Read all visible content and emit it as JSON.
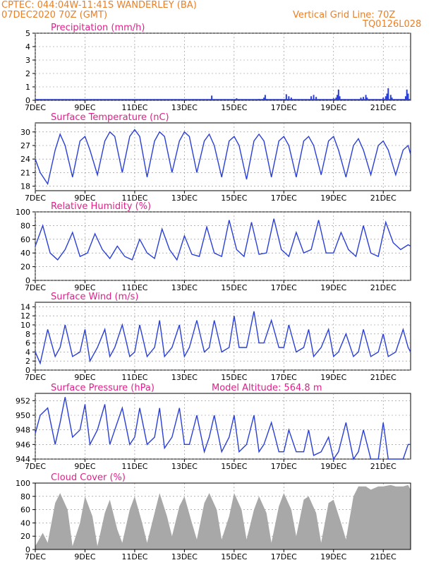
{
  "header": {
    "line1_left": "CPTEC:   044:04W-11:41S   WANDERLEY (BA)",
    "line2_left": "07DEC2020 70Z (GMT)",
    "line2_right": "Vertical Grid Line: 70Z",
    "line3_right": "TQ0126L028"
  },
  "colors": {
    "line": "#2a3fd6",
    "bar": "#2a3fd6",
    "cloud": "#a8a8a8",
    "title": "#e0208a",
    "header": "#e8802a"
  },
  "x_axis": {
    "labels": [
      "7DEC",
      "9DEC",
      "11DEC",
      "13DEC",
      "15DEC",
      "17DEC",
      "19DEC",
      "21DEC"
    ],
    "label_days": [
      0,
      2,
      4,
      6,
      8,
      10,
      12,
      14
    ],
    "range_days": [
      0,
      15.1
    ]
  },
  "chart_data": [
    {
      "id": "precip",
      "type": "bar",
      "title": "Precipitation (mm/h)",
      "ylim": [
        0,
        5
      ],
      "yticks": [
        0,
        1,
        2,
        3,
        4,
        5
      ],
      "x_days": [
        7.1,
        8.1,
        9.0,
        9.15,
        9.2,
        9.25,
        9.3,
        10.1,
        10.2,
        10.3,
        11.1,
        11.2,
        11.3,
        12.0,
        12.1,
        12.15,
        12.2,
        12.25,
        13.1,
        13.2,
        13.3,
        13.35,
        14.0,
        14.1,
        14.15,
        14.2,
        14.3,
        14.35,
        14.9,
        14.95,
        15.0
      ],
      "values": [
        0.35,
        0.15,
        0.1,
        0.1,
        0.2,
        0.4,
        0.1,
        0.45,
        0.3,
        0.2,
        0.3,
        0.4,
        0.25,
        0.15,
        0.2,
        0.4,
        0.8,
        0.3,
        0.2,
        0.25,
        0.4,
        0.2,
        0.2,
        0.3,
        0.5,
        0.9,
        0.4,
        0.2,
        0.3,
        0.8,
        0.5
      ],
      "cont_days": [
        0,
        15.1
      ]
    },
    {
      "id": "temp",
      "type": "line",
      "title": "Surface Temperature (nC)",
      "ylim": [
        17,
        32
      ],
      "yticks": [
        18,
        21,
        24,
        27,
        30
      ],
      "x_days": [
        0,
        0.2,
        0.5,
        0.8,
        1.0,
        1.2,
        1.5,
        1.8,
        2.0,
        2.2,
        2.5,
        2.8,
        3.0,
        3.2,
        3.5,
        3.8,
        4.0,
        4.2,
        4.5,
        4.8,
        5.0,
        5.2,
        5.5,
        5.8,
        6.0,
        6.2,
        6.5,
        6.8,
        7.0,
        7.2,
        7.5,
        7.8,
        8.0,
        8.2,
        8.5,
        8.8,
        9.0,
        9.2,
        9.5,
        9.8,
        10.0,
        10.2,
        10.5,
        10.8,
        11.0,
        11.2,
        11.5,
        11.8,
        12.0,
        12.2,
        12.5,
        12.8,
        13.0,
        13.2,
        13.5,
        13.8,
        14.0,
        14.2,
        14.5,
        14.8,
        15.0,
        15.1
      ],
      "values": [
        24,
        21,
        18.5,
        26,
        29.5,
        27,
        20,
        28,
        29,
        26,
        20.5,
        28,
        30,
        29,
        21,
        29,
        30.5,
        29,
        20,
        28,
        30,
        29,
        21,
        28,
        30,
        29,
        21,
        28,
        29.5,
        27,
        20,
        28,
        29,
        27,
        19.5,
        28,
        29.5,
        28,
        20,
        28,
        29,
        27,
        20,
        28,
        29,
        27,
        20.5,
        28,
        29,
        26,
        20,
        27,
        28.5,
        26,
        20.5,
        27,
        28,
        26,
        20.5,
        26,
        27,
        25
      ]
    },
    {
      "id": "rh",
      "type": "line",
      "title": "Relative Humidity (%)",
      "ylim": [
        0,
        100
      ],
      "yticks": [
        0,
        20,
        40,
        60,
        80,
        100
      ],
      "x_days": [
        0,
        0.3,
        0.6,
        0.9,
        1.2,
        1.5,
        1.8,
        2.1,
        2.4,
        2.7,
        3.0,
        3.3,
        3.6,
        3.9,
        4.2,
        4.5,
        4.8,
        5.1,
        5.4,
        5.7,
        6.0,
        6.3,
        6.6,
        6.9,
        7.2,
        7.5,
        7.8,
        8.1,
        8.4,
        8.7,
        9.0,
        9.3,
        9.6,
        9.9,
        10.2,
        10.5,
        10.8,
        11.1,
        11.4,
        11.7,
        12.0,
        12.3,
        12.6,
        12.9,
        13.2,
        13.5,
        13.8,
        14.1,
        14.4,
        14.7,
        15.0,
        15.1
      ],
      "values": [
        50,
        80,
        40,
        30,
        45,
        70,
        35,
        40,
        68,
        45,
        32,
        50,
        35,
        30,
        60,
        40,
        32,
        75,
        45,
        30,
        65,
        38,
        35,
        78,
        40,
        35,
        88,
        45,
        35,
        85,
        38,
        40,
        90,
        45,
        35,
        70,
        40,
        45,
        88,
        40,
        40,
        70,
        45,
        35,
        80,
        40,
        35,
        85,
        55,
        45,
        52,
        50
      ]
    },
    {
      "id": "wind",
      "type": "line",
      "title": "Surface Wind (m/s)",
      "ylim": [
        0,
        15
      ],
      "yticks": [
        0,
        2,
        4,
        6,
        8,
        10,
        12,
        14
      ],
      "x_days": [
        0,
        0.2,
        0.5,
        0.8,
        1.0,
        1.2,
        1.5,
        1.8,
        2.0,
        2.2,
        2.5,
        2.8,
        3.0,
        3.2,
        3.5,
        3.8,
        4.0,
        4.2,
        4.5,
        4.8,
        5.0,
        5.2,
        5.5,
        5.8,
        6.0,
        6.2,
        6.5,
        6.8,
        7.0,
        7.2,
        7.5,
        7.8,
        8.0,
        8.2,
        8.5,
        8.8,
        9.0,
        9.2,
        9.5,
        9.8,
        10.0,
        10.2,
        10.5,
        10.8,
        11.0,
        11.2,
        11.5,
        11.8,
        12.0,
        12.2,
        12.5,
        12.8,
        13.0,
        13.2,
        13.5,
        13.8,
        14.0,
        14.2,
        14.5,
        14.8,
        15.0,
        15.1
      ],
      "values": [
        4,
        1.5,
        9,
        3,
        5,
        10,
        3,
        4,
        9,
        2,
        5,
        9,
        3,
        5,
        10,
        3,
        4,
        10,
        3,
        5,
        11,
        3,
        5,
        10,
        3,
        5,
        11,
        4,
        5,
        11,
        4,
        5,
        12,
        5,
        5,
        13,
        6,
        6,
        11,
        5,
        5,
        10,
        4,
        5,
        9,
        3,
        5,
        9,
        3,
        4,
        8,
        3,
        4,
        9,
        3,
        4,
        8,
        3,
        4,
        9,
        5,
        4
      ]
    },
    {
      "id": "pressure",
      "type": "line",
      "title": "Surface Pressure (hPa)",
      "ylim": [
        944,
        953
      ],
      "yticks": [
        944,
        946,
        948,
        950,
        952
      ],
      "annotation": "Model Altitude: 564.8  m",
      "x_days": [
        0,
        0.2,
        0.5,
        0.8,
        1.0,
        1.2,
        1.5,
        1.8,
        2.0,
        2.2,
        2.5,
        2.8,
        3.0,
        3.2,
        3.5,
        3.8,
        4.0,
        4.2,
        4.5,
        4.8,
        5.0,
        5.2,
        5.5,
        5.8,
        6.0,
        6.2,
        6.5,
        6.8,
        7.0,
        7.2,
        7.5,
        7.8,
        8.0,
        8.2,
        8.5,
        8.8,
        9.0,
        9.2,
        9.5,
        9.8,
        10.0,
        10.2,
        10.5,
        10.8,
        11.0,
        11.2,
        11.5,
        11.8,
        12.0,
        12.2,
        12.5,
        12.8,
        13.0,
        13.2,
        13.5,
        13.8,
        14.0,
        14.2,
        14.5,
        14.8,
        15.0,
        15.1
      ],
      "values": [
        947.5,
        950,
        951,
        946,
        949,
        952.5,
        947,
        948,
        951.5,
        946,
        948,
        951.5,
        946,
        948,
        951,
        946,
        947,
        951,
        946,
        947,
        951,
        945.5,
        947,
        951,
        946,
        946,
        950,
        945,
        947,
        950,
        945,
        947,
        950,
        945,
        946,
        950,
        945,
        946,
        949,
        945,
        945,
        948,
        945,
        945,
        948,
        944.5,
        945,
        947,
        944,
        945,
        949,
        944,
        945,
        948,
        944,
        944,
        949,
        944,
        944,
        944,
        946,
        946
      ]
    },
    {
      "id": "cloud",
      "type": "area",
      "title": "Cloud Cover (%)",
      "ylim": [
        0,
        100
      ],
      "yticks": [
        0,
        20,
        40,
        60,
        80,
        100
      ],
      "x_days": [
        0,
        0.3,
        0.5,
        0.8,
        1.0,
        1.3,
        1.5,
        1.8,
        2.0,
        2.3,
        2.5,
        2.8,
        3.0,
        3.3,
        3.5,
        3.8,
        4.0,
        4.3,
        4.5,
        4.8,
        5.0,
        5.3,
        5.5,
        5.8,
        6.0,
        6.3,
        6.5,
        6.8,
        7.0,
        7.3,
        7.5,
        7.8,
        8.0,
        8.3,
        8.5,
        8.8,
        9.0,
        9.3,
        9.5,
        9.8,
        10.0,
        10.3,
        10.5,
        10.8,
        11.0,
        11.3,
        11.5,
        11.8,
        12.0,
        12.3,
        12.5,
        12.8,
        13.0,
        13.3,
        13.5,
        13.8,
        14.0,
        14.3,
        14.5,
        14.8,
        15.0,
        15.1
      ],
      "values": [
        5,
        25,
        10,
        70,
        85,
        60,
        5,
        40,
        80,
        50,
        5,
        55,
        75,
        30,
        10,
        60,
        80,
        40,
        10,
        55,
        85,
        50,
        20,
        65,
        80,
        40,
        15,
        70,
        85,
        60,
        15,
        50,
        85,
        60,
        15,
        60,
        80,
        55,
        10,
        65,
        85,
        60,
        20,
        75,
        80,
        55,
        10,
        70,
        75,
        40,
        15,
        80,
        95,
        95,
        90,
        95,
        95,
        97,
        95,
        95,
        97,
        90
      ]
    }
  ]
}
